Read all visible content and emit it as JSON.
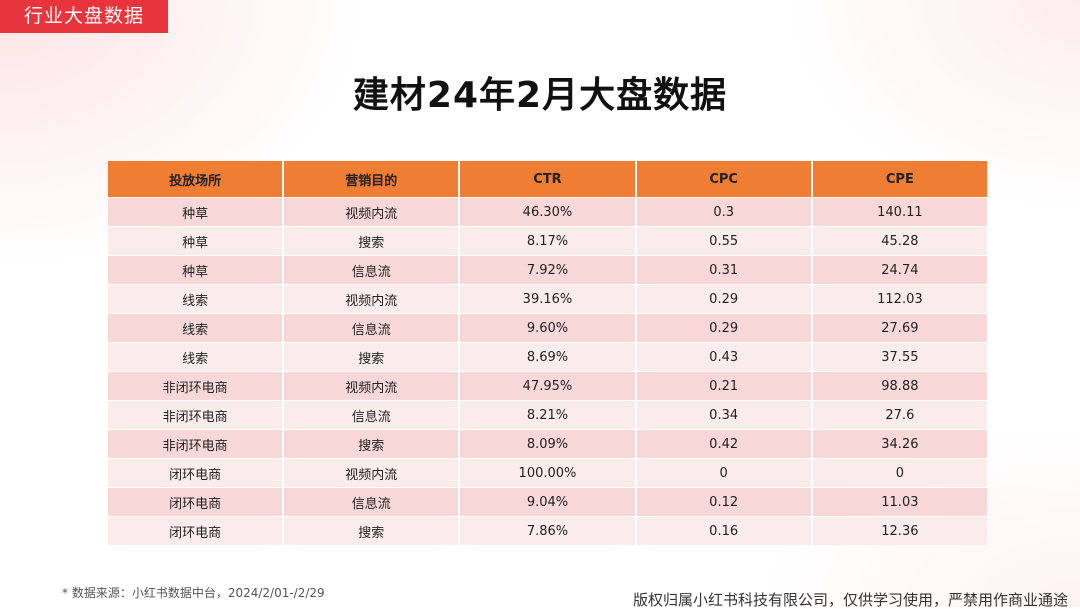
{
  "header": {
    "section_tag": "行业大盘数据"
  },
  "title": "建材24年2月大盘数据",
  "table": {
    "columns": [
      "投放场所",
      "营销目的",
      "CTR",
      "CPC",
      "CPE"
    ],
    "rows": [
      [
        "种草",
        "视频内流",
        "46.30%",
        "0.3",
        "140.11"
      ],
      [
        "种草",
        "搜索",
        "8.17%",
        "0.55",
        "45.28"
      ],
      [
        "种草",
        "信息流",
        "7.92%",
        "0.31",
        "24.74"
      ],
      [
        "线索",
        "视频内流",
        "39.16%",
        "0.29",
        "112.03"
      ],
      [
        "线索",
        "信息流",
        "9.60%",
        "0.29",
        "27.69"
      ],
      [
        "线索",
        "搜索",
        "8.69%",
        "0.43",
        "37.55"
      ],
      [
        "非闭环电商",
        "视频内流",
        "47.95%",
        "0.21",
        "98.88"
      ],
      [
        "非闭环电商",
        "信息流",
        "8.21%",
        "0.34",
        "27.6"
      ],
      [
        "非闭环电商",
        "搜索",
        "8.09%",
        "0.42",
        "34.26"
      ],
      [
        "闭环电商",
        "视频内流",
        "100.00%",
        "0",
        "0"
      ],
      [
        "闭环电商",
        "信息流",
        "9.04%",
        "0.12",
        "11.03"
      ],
      [
        "闭环电商",
        "搜索",
        "7.86%",
        "0.16",
        "12.36"
      ]
    ]
  },
  "footer": {
    "source_note": "* 数据来源：小红书数据中台，2024/2/01-/2/29",
    "copyright": "版权归属小红书科技有限公司，仅供学习使用，严禁用作商业通途"
  },
  "colors": {
    "tag_red": "#e8343c",
    "header_orange": "#ef7d34",
    "row_dark": "#f7d7d7",
    "row_light": "#fbecec"
  }
}
